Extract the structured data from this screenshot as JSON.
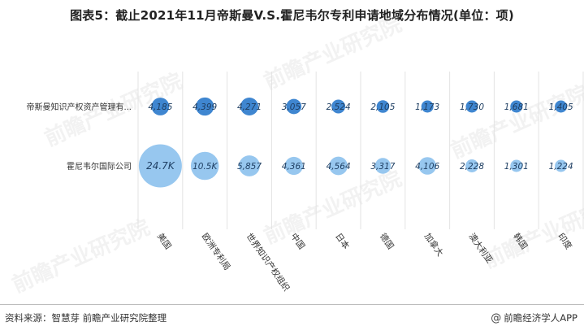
{
  "title": "图表5：截止2021年11月帝斯曼V.S.霍尼韦尔专利申请地域分布情况(单位：项)",
  "watermark": "前瞻产业研究院",
  "footer": {
    "source": "资料来源：智慧芽 前瞻产业研究院整理",
    "brand": "前瞻经济学人APP",
    "brand_icon": "at-sign-icon"
  },
  "colors": {
    "dsm_bubble": "#3f86d0",
    "honeywell_bubble": "#97c7ef",
    "grid": "#e3e3e3"
  },
  "chart_data": {
    "type": "bubble",
    "title": "图表5：截止2021年11月帝斯曼V.S.霍尼韦尔专利申请地域分布情况(单位：项)",
    "categories": [
      "美国",
      "欧洲专利局",
      "世界知识产权组织",
      "中国",
      "日本",
      "德国",
      "加拿大",
      "澳大利亚",
      "韩国",
      "印度"
    ],
    "rows": [
      "帝斯曼知识产权资产管理有...",
      "霍尼韦尔国际公司"
    ],
    "series": [
      {
        "name": "帝斯曼知识产权资产管理有...",
        "values": [
          4185,
          4399,
          4271,
          3057,
          2524,
          2105,
          1173,
          1730,
          1681,
          1405
        ],
        "labels": [
          "4,185",
          "4,399",
          "4,271",
          "3,057",
          "2,524",
          "2,105",
          "1,173",
          "1,730",
          "1,681",
          "1,405"
        ]
      },
      {
        "name": "霍尼韦尔国际公司",
        "values": [
          24700,
          10500,
          5857,
          4361,
          4564,
          3317,
          4106,
          2228,
          1301,
          1224
        ],
        "labels": [
          "24.7K",
          "10.5K",
          "5,857",
          "4,361",
          "4,564",
          "3,317",
          "4,106",
          "2,228",
          "1,301",
          "1,224"
        ]
      }
    ],
    "grid": true,
    "legend": "none"
  }
}
